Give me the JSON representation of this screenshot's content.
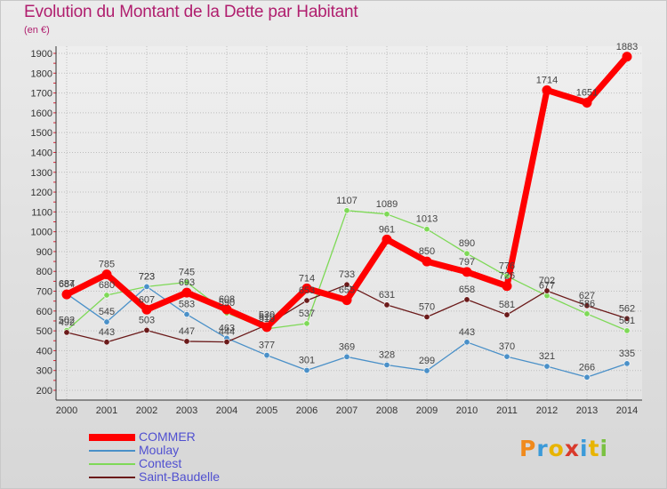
{
  "chart_data": {
    "type": "line",
    "title": "Evolution du Montant de la Dette par Habitant",
    "ylabel": "(en €)",
    "xlabel": "",
    "ylim": [
      200,
      1900
    ],
    "y_ticks": [
      200,
      300,
      400,
      500,
      600,
      700,
      800,
      900,
      1000,
      1100,
      1200,
      1300,
      1400,
      1500,
      1600,
      1700,
      1800,
      1900
    ],
    "categories": [
      "2000",
      "2001",
      "2002",
      "2003",
      "2004",
      "2005",
      "2006",
      "2007",
      "2008",
      "2009",
      "2010",
      "2011",
      "2012",
      "2013",
      "2014"
    ],
    "grid": true,
    "legend_position": "bottom-left",
    "series": [
      {
        "name": "COMMER",
        "color": "#ff0000",
        "values": [
          684,
          785,
          607,
          693,
          608,
          519,
          714,
          655,
          961,
          850,
          797,
          726,
          1714,
          1651,
          1883
        ]
      },
      {
        "name": "Moulay",
        "color": "#4a90c8",
        "values": [
          687,
          545,
          723,
          583,
          463,
          377,
          301,
          369,
          328,
          299,
          443,
          370,
          321,
          266,
          335
        ]
      },
      {
        "name": "Contest",
        "color": "#7ed957",
        "values": [
          502,
          680,
          723,
          745,
          590,
          510,
          537,
          1107,
          1089,
          1013,
          890,
          776,
          677,
          586,
          501
        ]
      },
      {
        "name": "Saint-Baudelle",
        "color": "#6b1a1a",
        "values": [
          492,
          443,
          503,
          447,
          444,
          530,
          653,
          733,
          631,
          570,
          658,
          581,
          702,
          627,
          562
        ]
      }
    ]
  },
  "logo": {
    "letters": [
      "P",
      "r",
      "o",
      "x",
      "i",
      "t",
      "i"
    ],
    "colors": [
      "#f08a1c",
      "#3b9ad9",
      "#e8b400",
      "#d93a2c",
      "#3b9ad9",
      "#e8b400",
      "#7ac142"
    ]
  }
}
